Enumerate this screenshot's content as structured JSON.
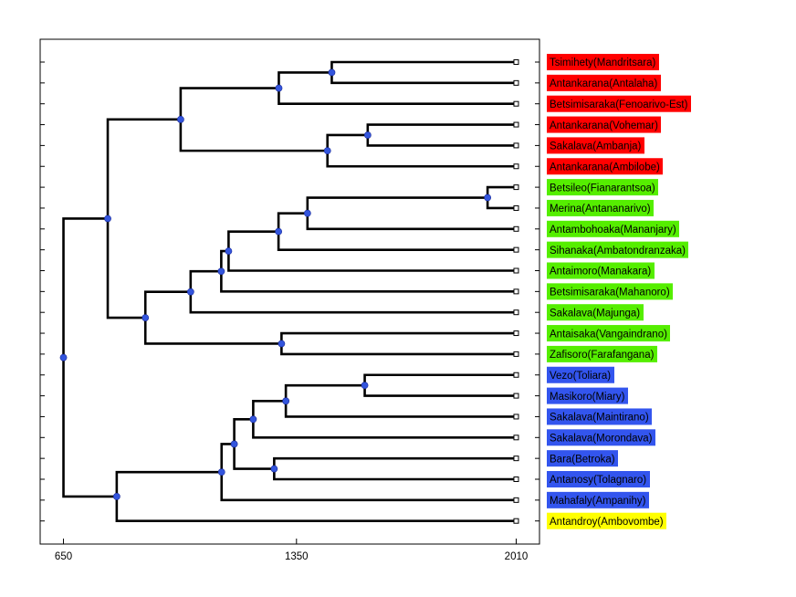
{
  "chart_data": {
    "type": "dendrogram",
    "x_ticks": [
      650,
      1350,
      2010
    ],
    "xlim": [
      580,
      2080
    ],
    "orientation": "root-left",
    "group_colors": {
      "red": "#ff0000",
      "green": "#55ee00",
      "blue": "#3355ee",
      "yellow": "#ffff00"
    },
    "leaves": [
      {
        "label": "Tsimihety(Mandritsara)",
        "group": "red"
      },
      {
        "label": "Antankarana(Antalaha)",
        "group": "red"
      },
      {
        "label": "Betsimisaraka(Fenoarivo-Est)",
        "group": "red"
      },
      {
        "label": "Antankarana(Vohemar)",
        "group": "red"
      },
      {
        "label": "Sakalava(Ambanja)",
        "group": "red"
      },
      {
        "label": "Antankarana(Ambilobe)",
        "group": "red"
      },
      {
        "label": "Betsileo(Fianarantsoa)",
        "group": "green"
      },
      {
        "label": "Merina(Antananarivo)",
        "group": "green"
      },
      {
        "label": "Antambohoaka(Mananjary)",
        "group": "green"
      },
      {
        "label": "Sihanaka(Ambatondranzaka)",
        "group": "green"
      },
      {
        "label": "Antaimoro(Manakara)",
        "group": "green"
      },
      {
        "label": "Betsimisaraka(Mahanoro)",
        "group": "green"
      },
      {
        "label": "Sakalava(Majunga)",
        "group": "green"
      },
      {
        "label": "Antaisaka(Vangaindrano)",
        "group": "green"
      },
      {
        "label": "Zafisoro(Farafangana)",
        "group": "green"
      },
      {
        "label": "Vezo(Toliara)",
        "group": "blue"
      },
      {
        "label": "Masikoro(Miary)",
        "group": "blue"
      },
      {
        "label": "Sakalava(Maintirano)",
        "group": "blue"
      },
      {
        "label": "Sakalava(Morondava)",
        "group": "blue"
      },
      {
        "label": "Bara(Betroka)",
        "group": "blue"
      },
      {
        "label": "Antanosy(Tolagnaro)",
        "group": "blue"
      },
      {
        "label": "Mahafaly(Ampanihy)",
        "group": "blue"
      },
      {
        "label": "Antandroy(Ambovombe)",
        "group": "yellow"
      }
    ],
    "merges": [
      {
        "a": "L0",
        "b": "L1",
        "h": 1456
      },
      {
        "a": "M0",
        "b": "L2",
        "h": 1297
      },
      {
        "a": "L3",
        "b": "L4",
        "h": 1564
      },
      {
        "a": "M2",
        "b": "L5",
        "h": 1443
      },
      {
        "a": "M1",
        "b": "M3",
        "h": 1002
      },
      {
        "a": "L6",
        "b": "L7",
        "h": 1924
      },
      {
        "a": "M5",
        "b": "L8",
        "h": 1383
      },
      {
        "a": "M6",
        "b": "L9",
        "h": 1296
      },
      {
        "a": "M7",
        "b": "L10",
        "h": 1146
      },
      {
        "a": "M8",
        "b": "L11",
        "h": 1124
      },
      {
        "a": "M9",
        "b": "L12",
        "h": 1032
      },
      {
        "a": "L13",
        "b": "L14",
        "h": 1305
      },
      {
        "a": "M10",
        "b": "M11",
        "h": 896
      },
      {
        "a": "M4",
        "b": "M12",
        "h": 783
      },
      {
        "a": "L15",
        "b": "L16",
        "h": 1555
      },
      {
        "a": "M14",
        "b": "L17",
        "h": 1318
      },
      {
        "a": "M15",
        "b": "L18",
        "h": 1220
      },
      {
        "a": "L19",
        "b": "L20",
        "h": 1283
      },
      {
        "a": "M16",
        "b": "M17",
        "h": 1163
      },
      {
        "a": "M18",
        "b": "L21",
        "h": 1125
      },
      {
        "a": "M19",
        "b": "L22",
        "h": 810
      },
      {
        "a": "M13",
        "b": "M20",
        "h": 650
      }
    ]
  }
}
